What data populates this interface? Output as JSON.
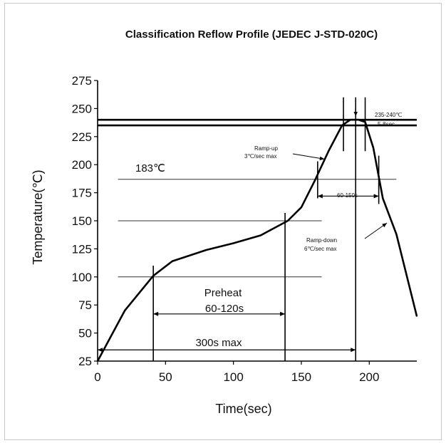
{
  "chart_data": {
    "type": "line",
    "title": "Classification Reflow Profile (JEDEC J-STD-020C)",
    "xlabel": "Time(sec)",
    "ylabel": "Temperature(℃)",
    "xlim": [
      0,
      235
    ],
    "ylim": [
      25,
      275
    ],
    "x_ticks": [
      0,
      50,
      100,
      150,
      200
    ],
    "y_ticks": [
      25,
      50,
      75,
      100,
      125,
      150,
      175,
      200,
      225,
      250,
      275
    ],
    "grid": false,
    "series": [
      {
        "x": [
          0,
          20,
          41,
          55,
          80,
          100,
          120,
          140,
          150,
          160,
          170,
          180,
          186,
          192,
          197,
          203,
          210,
          220,
          235
        ],
        "y": [
          25,
          70,
          101,
          114,
          124,
          130,
          137,
          150,
          162,
          186,
          212,
          235,
          240,
          240,
          238,
          215,
          170,
          138,
          65
        ]
      }
    ],
    "reference_lines": [
      {
        "y": 235,
        "x_start": 0,
        "x_end": 235
      },
      {
        "y": 240,
        "x_start": 0,
        "x_end": 235
      },
      {
        "y": 187,
        "x_start": 15,
        "x_end": 220
      },
      {
        "y": 150,
        "x_start": 15,
        "x_end": 165
      },
      {
        "y": 100,
        "x_start": 15,
        "x_end": 165
      }
    ],
    "vertical_markers": [
      {
        "x": 41,
        "y_start": 25,
        "y_end": 110
      },
      {
        "x": 138,
        "y_start": 25,
        "y_end": 157
      },
      {
        "x": 162,
        "y_start": 170,
        "y_end": 203
      },
      {
        "x": 181,
        "y_start": 212,
        "y_end": 260
      },
      {
        "x": 190,
        "y_start": 25,
        "y_end": 250
      },
      {
        "x": 197,
        "y_start": 212,
        "y_end": 260
      },
      {
        "x": 207,
        "y_start": 165,
        "y_end": 208
      },
      {
        "x": 190,
        "y_start": 245,
        "y_end": 260
      }
    ],
    "annotations": {
      "reflow_183": "183℃",
      "peak": "235-240℃",
      "peak_time": "5-8sec",
      "ramp_up": "Ramp-up",
      "ramp_up_rate": "3℃/sec max",
      "ramp_down": "Ramp-down",
      "ramp_down_rate": "6℃/sec max",
      "above_liquidus": "60-150s",
      "preheat": "Preheat",
      "preheat_time": "60-120s",
      "total": "300s max"
    }
  }
}
